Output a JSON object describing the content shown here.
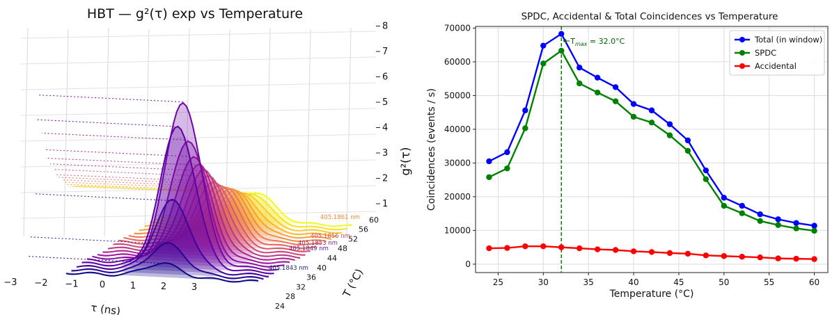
{
  "chart_data": [
    {
      "type": "waterfall-3d-line",
      "title": "HBT — g²(τ) exp vs Temperature",
      "xlabel": "τ (ns)",
      "ylabel": "T (°C)",
      "zlabel": "g²(τ)",
      "xlim": [
        -3,
        3
      ],
      "zlim": [
        1,
        8
      ],
      "x_ticks": [
        "−3",
        "−2",
        "−1",
        "0",
        "1",
        "2",
        "3"
      ],
      "t_ticks": [
        "24",
        "28",
        "32",
        "36",
        "40",
        "44",
        "48",
        "52",
        "56",
        "60"
      ],
      "z_ticks": [
        "1",
        "2",
        "3",
        "4",
        "5",
        "6",
        "7",
        "8"
      ],
      "temperatures": [
        24,
        26,
        28,
        30,
        32,
        34,
        36,
        38,
        40,
        42,
        44,
        46,
        48,
        50,
        52,
        54,
        56,
        58,
        60
      ],
      "peak_g2": [
        1.5,
        2.1,
        3.6,
        6.3,
        7.2,
        5.7,
        5.0,
        4.6,
        4.3,
        4.0,
        3.7,
        3.5,
        3.3,
        3.1,
        2.9,
        2.7,
        2.6,
        2.5,
        2.4
      ],
      "annotations": [
        {
          "text": "405.1843 nm",
          "color": "#1a1a7a"
        },
        {
          "text": "405.1849 nm",
          "color": "#6a1b9a"
        },
        {
          "text": "405.1853 nm",
          "color": "#8e2c8a"
        },
        {
          "text": "405.1856 nm",
          "color": "#d84a6b"
        },
        {
          "text": "405.1861 nm",
          "color": "#f08a2c"
        }
      ],
      "colormap": [
        "#0d0887",
        "#5c01a6",
        "#9c179e",
        "#cc4778",
        "#ed7953",
        "#fdb42f",
        "#f0f921"
      ],
      "grid": true
    },
    {
      "type": "line",
      "title": "SPDC, Accidental & Total Coincidences vs Temperature",
      "xlabel": "Temperature (°C)",
      "ylabel": "Coincidences (events / s)",
      "x": [
        24,
        26,
        28,
        30,
        32,
        34,
        36,
        38,
        40,
        42,
        44,
        46,
        48,
        50,
        52,
        54,
        56,
        58,
        60
      ],
      "xlim": [
        22.5,
        61.5
      ],
      "ylim": [
        -2500,
        70500
      ],
      "x_ticks": [
        25,
        30,
        35,
        40,
        45,
        50,
        55,
        60
      ],
      "y_ticks": [
        0,
        10000,
        20000,
        30000,
        40000,
        50000,
        60000,
        70000
      ],
      "series": [
        {
          "name": "Total (in window)",
          "color": "#0000ff",
          "values": [
            30500,
            33200,
            45600,
            64800,
            68300,
            58300,
            55300,
            52500,
            47500,
            45600,
            41500,
            36700,
            27800,
            19700,
            17300,
            14800,
            13300,
            12200,
            11400
          ]
        },
        {
          "name": "SPDC",
          "color": "#008000",
          "values": [
            25800,
            28400,
            40300,
            59500,
            63300,
            53600,
            50900,
            48300,
            43700,
            42000,
            38200,
            33600,
            25200,
            17300,
            15100,
            12800,
            11600,
            10600,
            9900
          ]
        },
        {
          "name": "Accidental",
          "color": "#ff0000",
          "values": [
            4700,
            4800,
            5300,
            5300,
            5000,
            4700,
            4400,
            4200,
            3800,
            3600,
            3300,
            3100,
            2600,
            2400,
            2200,
            2000,
            1700,
            1600,
            1500
          ]
        }
      ],
      "vline": {
        "x": 32,
        "color": "#008000",
        "style": "dashed"
      },
      "annotation": {
        "text_main": "T",
        "text_sub": "max",
        "text_rest": " = 32.0°C",
        "color": "#006400"
      },
      "legend": "top-right",
      "grid": true
    }
  ]
}
